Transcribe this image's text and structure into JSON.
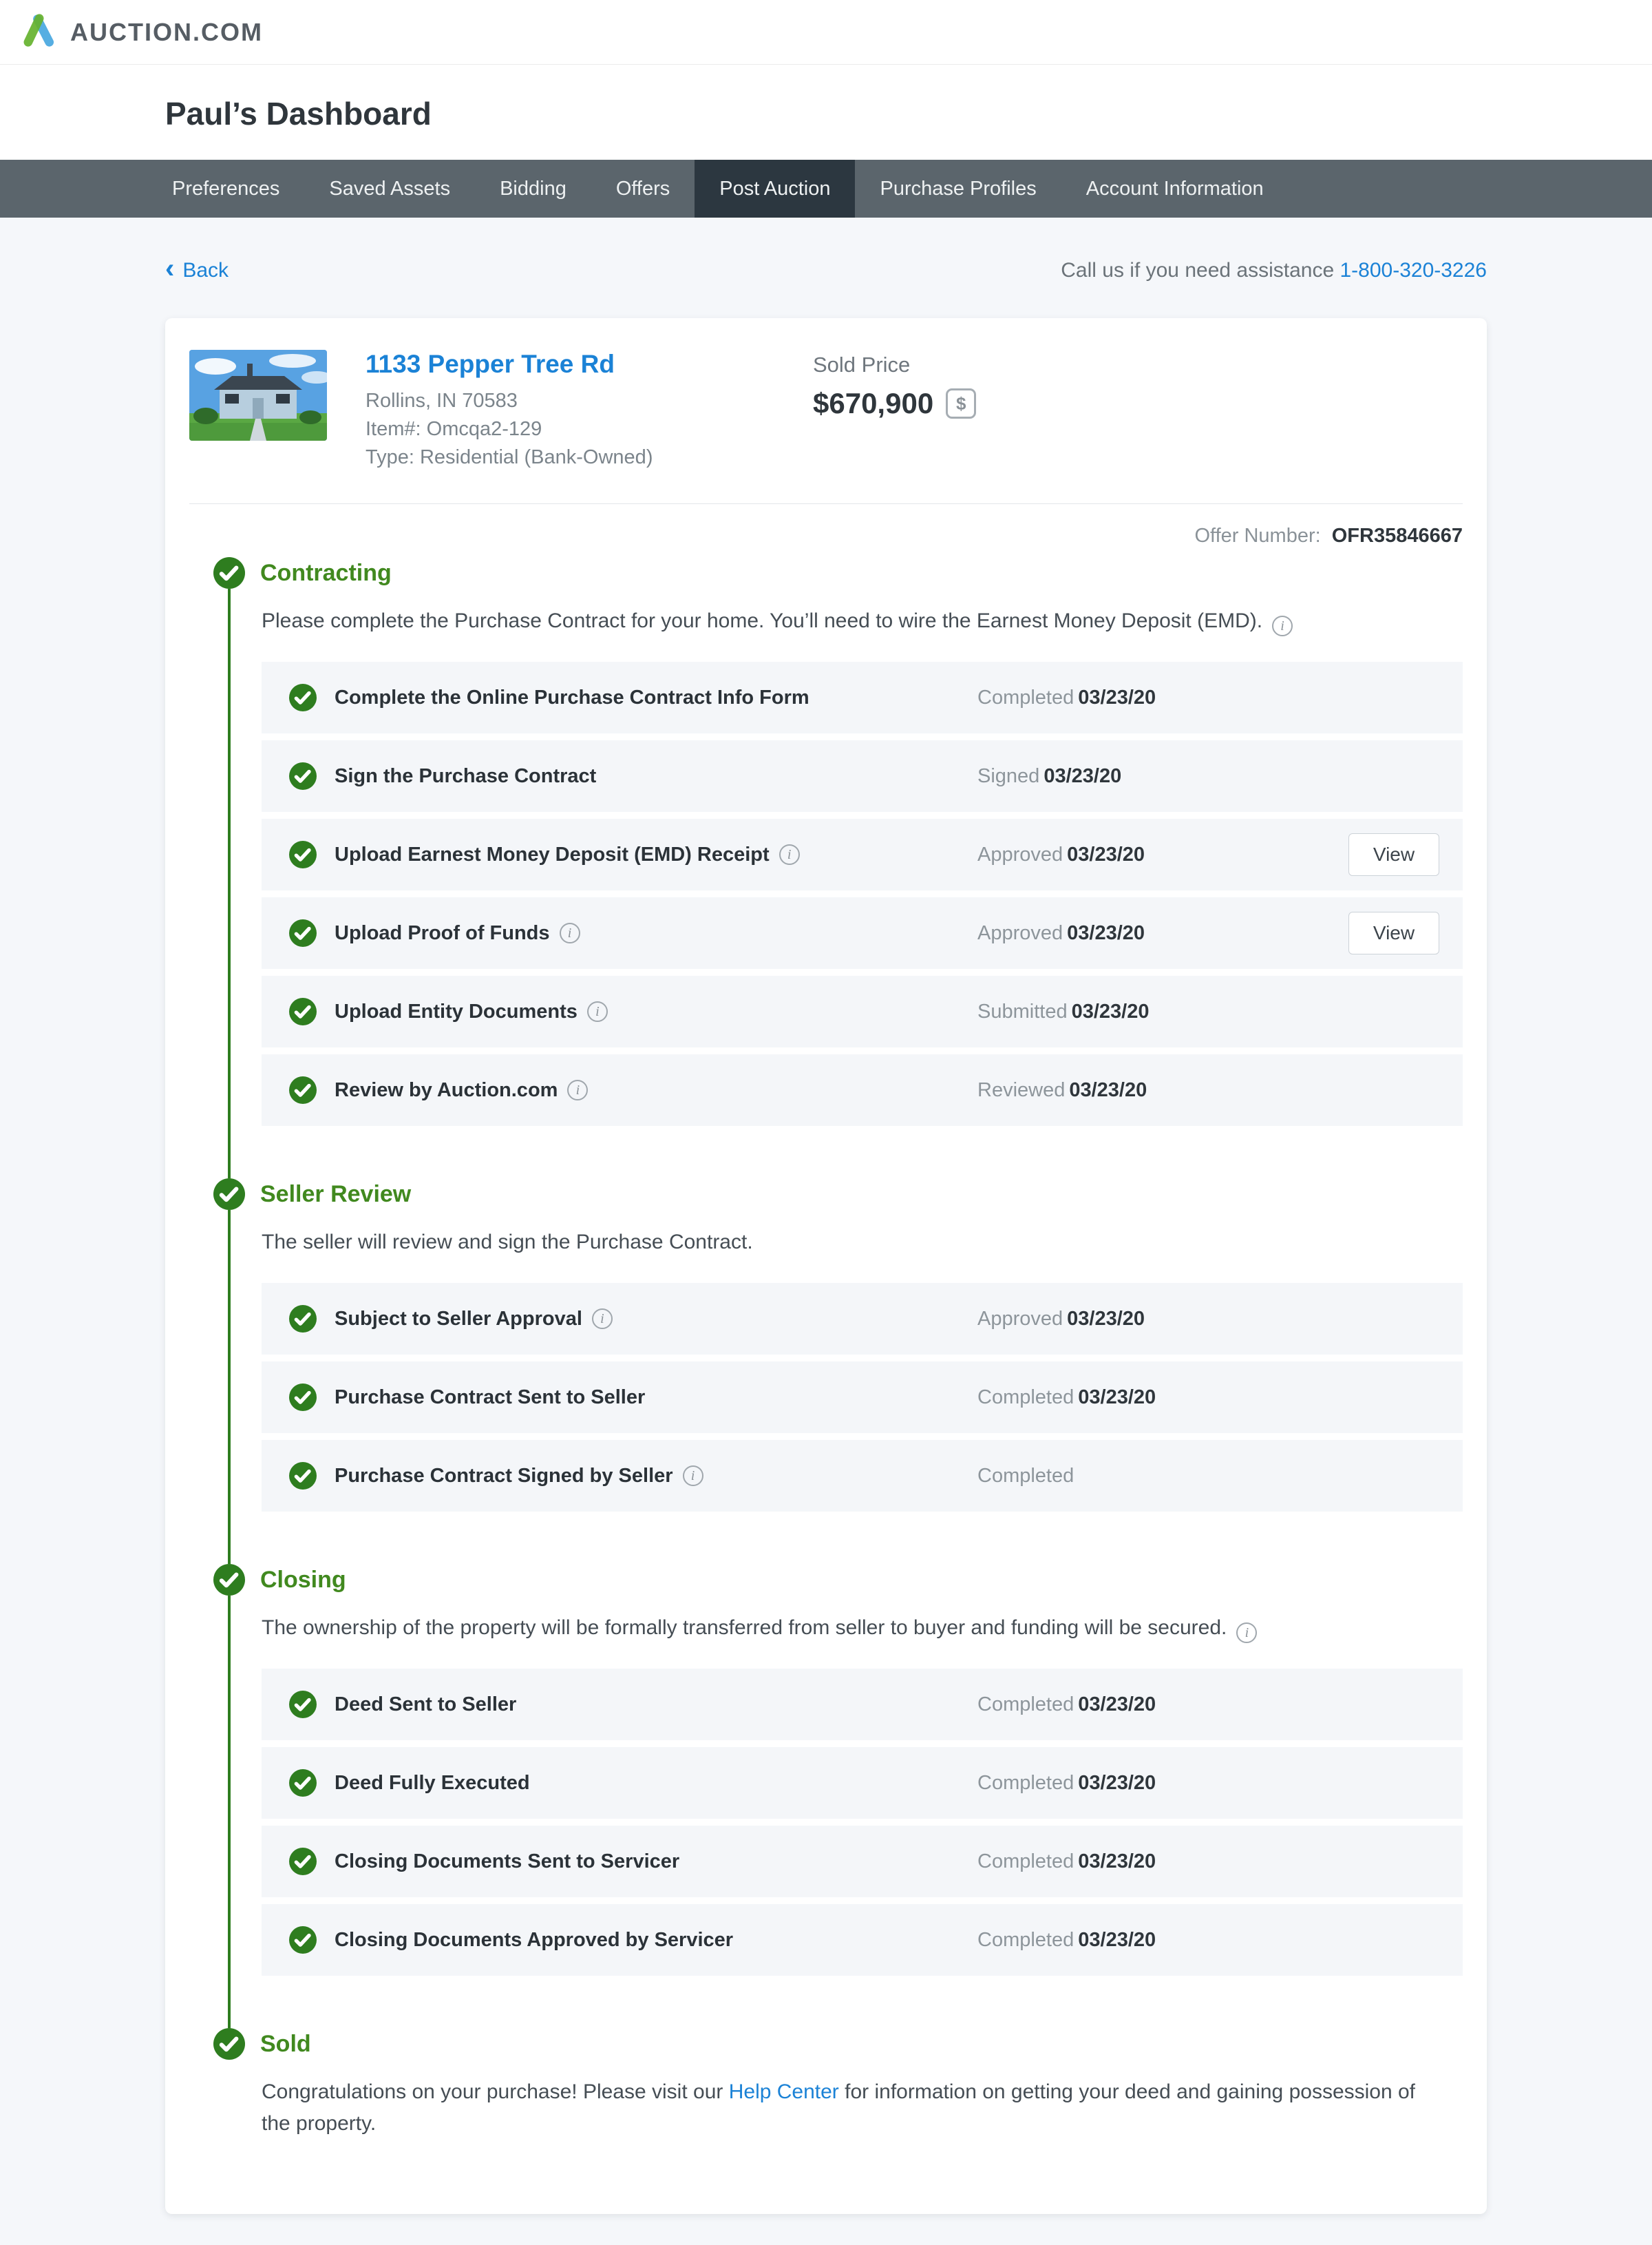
{
  "brand": {
    "logo_text": "AUCTION.COM"
  },
  "page_title": "Paul’s Dashboard",
  "nav": {
    "tabs": [
      {
        "label": "Preferences",
        "active": false
      },
      {
        "label": "Saved Assets",
        "active": false
      },
      {
        "label": "Bidding",
        "active": false
      },
      {
        "label": "Offers",
        "active": false
      },
      {
        "label": "Post Auction",
        "active": true
      },
      {
        "label": "Purchase Profiles",
        "active": false
      },
      {
        "label": "Account Information",
        "active": false
      }
    ]
  },
  "toolbar": {
    "back_label": "Back",
    "assistance_text": "Call us if you need assistance",
    "assistance_phone": "1-800-320-3226"
  },
  "property": {
    "address": "1133 Pepper Tree Rd",
    "city_line": "Rollins, IN 70583",
    "item_line": "Item#: Omcqa2-129",
    "type_line": "Type: Residential (Bank-Owned)",
    "sold_price_label": "Sold Price",
    "sold_price": "$670,900"
  },
  "offer": {
    "label": "Offer Number:",
    "number": "OFR35846667"
  },
  "sections": [
    {
      "title": "Contracting",
      "desc_pre": "Please complete the Purchase Contract for your home. You’ll need to wire the Earnest Money Deposit (EMD).",
      "desc_link": "",
      "desc_post": "",
      "info": true,
      "tasks": [
        {
          "name": "Complete the Online Purchase Contract Info Form",
          "info": false,
          "status_word": "Completed",
          "status_date": "03/23/20",
          "action": ""
        },
        {
          "name": "Sign the Purchase Contract",
          "info": false,
          "status_word": "Signed",
          "status_date": "03/23/20",
          "action": ""
        },
        {
          "name": "Upload Earnest Money Deposit (EMD) Receipt",
          "info": true,
          "status_word": "Approved",
          "status_date": "03/23/20",
          "action": "View"
        },
        {
          "name": "Upload Proof of Funds",
          "info": true,
          "status_word": "Approved",
          "status_date": "03/23/20",
          "action": "View"
        },
        {
          "name": "Upload Entity Documents",
          "info": true,
          "status_word": "Submitted",
          "status_date": "03/23/20",
          "action": ""
        },
        {
          "name": "Review by Auction.com",
          "info": true,
          "status_word": "Reviewed",
          "status_date": "03/23/20",
          "action": ""
        }
      ]
    },
    {
      "title": "Seller Review",
      "desc_pre": "The seller will review and sign the Purchase Contract.",
      "desc_link": "",
      "desc_post": "",
      "info": false,
      "tasks": [
        {
          "name": "Subject to Seller Approval",
          "info": true,
          "status_word": "Approved",
          "status_date": "03/23/20",
          "action": ""
        },
        {
          "name": "Purchase Contract Sent to Seller",
          "info": false,
          "status_word": "Completed",
          "status_date": "03/23/20",
          "action": ""
        },
        {
          "name": "Purchase Contract Signed by Seller",
          "info": true,
          "status_word": "Completed",
          "status_date": "",
          "action": ""
        }
      ]
    },
    {
      "title": "Closing",
      "desc_pre": "The ownership of the property will be formally transferred from seller to buyer and funding will be secured.",
      "desc_link": "",
      "desc_post": "",
      "info": true,
      "tasks": [
        {
          "name": "Deed Sent to Seller",
          "info": false,
          "status_word": "Completed",
          "status_date": "03/23/20",
          "action": ""
        },
        {
          "name": "Deed Fully Executed",
          "info": false,
          "status_word": "Completed",
          "status_date": "03/23/20",
          "action": ""
        },
        {
          "name": "Closing Documents Sent to Servicer",
          "info": false,
          "status_word": "Completed",
          "status_date": "03/23/20",
          "action": ""
        },
        {
          "name": "Closing Documents Approved by Servicer",
          "info": false,
          "status_word": "Completed",
          "status_date": "03/23/20",
          "action": ""
        }
      ]
    },
    {
      "title": "Sold",
      "desc_pre": "Congratulations on your purchase! Please visit our ",
      "desc_link": "Help Center",
      "desc_post": " for information on getting your deed and gaining possession of the property.",
      "info": false,
      "tasks": []
    }
  ],
  "icons": {
    "dollar": "$",
    "back_chevron": "‹",
    "info": "i"
  },
  "colors": {
    "green": "#2e7d1f",
    "green_heading": "#41891f",
    "line": "#2e7d1f",
    "blue": "#1b82d6",
    "nav": "#5b656c",
    "nav_active": "#2c3740",
    "text": "#2f363c",
    "gray": "#8d959b",
    "row": "#f4f6f9",
    "page": "#f5f7fa"
  }
}
